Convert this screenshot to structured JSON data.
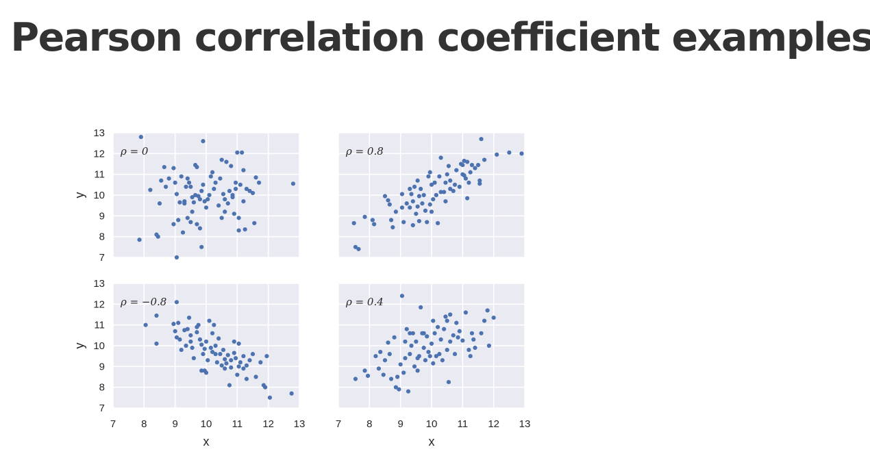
{
  "title": "Pearson correlation coefficient examples",
  "chart_data": [
    {
      "type": "scatter",
      "annotation": "ρ = 0",
      "xlabel": "",
      "ylabel": "y",
      "xlim": [
        7,
        13
      ],
      "ylim": [
        7,
        13
      ],
      "xticks": [],
      "yticks": [
        "7",
        "8",
        "9",
        "10",
        "11",
        "12",
        "13"
      ],
      "color": "#4c72b0",
      "grid": true,
      "points": [
        [
          7.9,
          12.8
        ],
        [
          9.9,
          12.6
        ],
        [
          12.8,
          10.55
        ],
        [
          7.85,
          7.85
        ],
        [
          8.4,
          8.1
        ],
        [
          8.45,
          8.0
        ],
        [
          9.05,
          7.0
        ],
        [
          9.85,
          7.5
        ],
        [
          8.2,
          10.25
        ],
        [
          8.5,
          9.6
        ],
        [
          8.55,
          10.7
        ],
        [
          8.65,
          11.35
        ],
        [
          8.8,
          10.8
        ],
        [
          8.95,
          11.3
        ],
        [
          9.0,
          10.6
        ],
        [
          9.05,
          10.05
        ],
        [
          8.95,
          8.6
        ],
        [
          9.1,
          8.8
        ],
        [
          9.15,
          9.65
        ],
        [
          9.3,
          9.7
        ],
        [
          9.35,
          10.4
        ],
        [
          9.4,
          10.8
        ],
        [
          9.45,
          10.6
        ],
        [
          9.5,
          10.4
        ],
        [
          9.55,
          9.9
        ],
        [
          9.6,
          9.65
        ],
        [
          9.65,
          11.45
        ],
        [
          9.7,
          11.35
        ],
        [
          9.75,
          9.95
        ],
        [
          9.8,
          9.8
        ],
        [
          9.85,
          10.2
        ],
        [
          9.9,
          10.5
        ],
        [
          9.95,
          9.7
        ],
        [
          10.0,
          9.4
        ],
        [
          10.1,
          10.0
        ],
        [
          10.15,
          10.9
        ],
        [
          10.2,
          11.1
        ],
        [
          10.3,
          10.6
        ],
        [
          10.4,
          9.5
        ],
        [
          10.45,
          10.8
        ],
        [
          10.5,
          11.7
        ],
        [
          10.55,
          10.05
        ],
        [
          10.6,
          9.8
        ],
        [
          10.65,
          11.6
        ],
        [
          10.7,
          9.6
        ],
        [
          10.75,
          10.2
        ],
        [
          10.8,
          11.4
        ],
        [
          10.85,
          9.9
        ],
        [
          10.95,
          10.3
        ],
        [
          11.0,
          12.05
        ],
        [
          11.05,
          8.9
        ],
        [
          11.1,
          10.5
        ],
        [
          11.15,
          12.05
        ],
        [
          11.2,
          11.2
        ],
        [
          11.3,
          10.3
        ],
        [
          11.4,
          10.2
        ],
        [
          11.5,
          10.1
        ],
        [
          11.55,
          8.65
        ],
        [
          11.6,
          10.85
        ],
        [
          11.7,
          10.6
        ],
        [
          10.9,
          9.1
        ],
        [
          11.05,
          8.3
        ],
        [
          11.25,
          8.35
        ],
        [
          9.25,
          8.2
        ],
        [
          9.4,
          8.9
        ],
        [
          9.5,
          8.7
        ],
        [
          9.55,
          9.2
        ],
        [
          9.7,
          8.6
        ],
        [
          9.8,
          8.4
        ],
        [
          10.6,
          9.2
        ],
        [
          10.5,
          8.9
        ],
        [
          10.85,
          10.0
        ],
        [
          11.2,
          9.7
        ],
        [
          9.2,
          10.9
        ],
        [
          9.65,
          10.0
        ],
        [
          9.3,
          9.6
        ],
        [
          10.05,
          9.8
        ],
        [
          8.7,
          10.4
        ],
        [
          10.25,
          10.3
        ],
        [
          10.95,
          10.6
        ]
      ]
    },
    {
      "type": "scatter",
      "annotation": "ρ = 0.8",
      "xlabel": "",
      "ylabel": "",
      "xlim": [
        7,
        13
      ],
      "ylim": [
        7,
        13
      ],
      "xticks": [],
      "yticks": [],
      "color": "#4c72b0",
      "grid": true,
      "points": [
        [
          7.5,
          8.65
        ],
        [
          7.55,
          7.5
        ],
        [
          7.65,
          7.4
        ],
        [
          7.85,
          8.95
        ],
        [
          8.1,
          8.8
        ],
        [
          8.15,
          8.6
        ],
        [
          8.5,
          9.95
        ],
        [
          8.6,
          9.75
        ],
        [
          8.65,
          9.55
        ],
        [
          8.7,
          8.8
        ],
        [
          8.75,
          8.45
        ],
        [
          8.85,
          9.2
        ],
        [
          9.05,
          9.4
        ],
        [
          9.1,
          8.7
        ],
        [
          9.2,
          9.6
        ],
        [
          9.3,
          9.4
        ],
        [
          9.35,
          10.05
        ],
        [
          9.4,
          9.7
        ],
        [
          9.45,
          10.4
        ],
        [
          9.5,
          9.1
        ],
        [
          9.55,
          9.45
        ],
        [
          9.6,
          9.95
        ],
        [
          9.65,
          10.3
        ],
        [
          9.7,
          9.6
        ],
        [
          9.75,
          10.0
        ],
        [
          9.8,
          9.25
        ],
        [
          9.9,
          10.9
        ],
        [
          9.95,
          11.1
        ],
        [
          10.0,
          10.5
        ],
        [
          10.05,
          9.8
        ],
        [
          10.1,
          10.6
        ],
        [
          10.2,
          8.65
        ],
        [
          10.25,
          10.9
        ],
        [
          10.3,
          11.8
        ],
        [
          10.4,
          10.15
        ],
        [
          10.45,
          9.7
        ],
        [
          10.5,
          11.0
        ],
        [
          10.55,
          11.4
        ],
        [
          10.6,
          10.7
        ],
        [
          10.7,
          10.2
        ],
        [
          10.75,
          10.5
        ],
        [
          10.8,
          11.2
        ],
        [
          10.9,
          10.4
        ],
        [
          10.95,
          11.5
        ],
        [
          11.0,
          11.0
        ],
        [
          11.05,
          11.65
        ],
        [
          11.1,
          10.8
        ],
        [
          11.15,
          11.6
        ],
        [
          11.2,
          10.6
        ],
        [
          11.25,
          11.1
        ],
        [
          11.3,
          11.45
        ],
        [
          11.4,
          11.3
        ],
        [
          11.5,
          11.45
        ],
        [
          11.55,
          10.7
        ],
        [
          11.6,
          12.7
        ],
        [
          11.7,
          11.7
        ],
        [
          12.1,
          11.95
        ],
        [
          12.5,
          12.05
        ],
        [
          12.9,
          12.0
        ],
        [
          11.15,
          9.85
        ],
        [
          10.0,
          9.2
        ],
        [
          9.4,
          8.55
        ],
        [
          9.6,
          8.75
        ],
        [
          9.85,
          8.7
        ],
        [
          10.3,
          10.15
        ],
        [
          9.95,
          9.55
        ],
        [
          10.45,
          10.6
        ],
        [
          11.0,
          11.45
        ],
        [
          9.05,
          10.05
        ],
        [
          9.3,
          10.3
        ],
        [
          9.55,
          10.7
        ],
        [
          10.15,
          10.0
        ],
        [
          10.6,
          10.3
        ],
        [
          11.05,
          10.95
        ],
        [
          11.55,
          10.55
        ]
      ]
    },
    {
      "type": "scatter",
      "annotation": "ρ = −0.8",
      "xlabel": "x",
      "ylabel": "y",
      "xlim": [
        7,
        13
      ],
      "ylim": [
        7,
        13
      ],
      "xticks": [
        "7",
        "8",
        "9",
        "10",
        "11",
        "12",
        "13"
      ],
      "yticks": [
        "7",
        "8",
        "9",
        "10",
        "11",
        "12",
        "13"
      ],
      "color": "#4c72b0",
      "grid": true,
      "points": [
        [
          8.05,
          11.0
        ],
        [
          8.4,
          11.45
        ],
        [
          8.4,
          10.1
        ],
        [
          9.05,
          12.1
        ],
        [
          8.95,
          11.05
        ],
        [
          9.0,
          10.7
        ],
        [
          9.05,
          10.4
        ],
        [
          9.1,
          11.1
        ],
        [
          9.15,
          10.3
        ],
        [
          9.2,
          9.8
        ],
        [
          9.3,
          10.75
        ],
        [
          9.4,
          10.8
        ],
        [
          9.45,
          11.35
        ],
        [
          9.5,
          10.5
        ],
        [
          9.55,
          9.9
        ],
        [
          9.6,
          9.4
        ],
        [
          9.7,
          10.65
        ],
        [
          9.75,
          11.0
        ],
        [
          9.8,
          10.3
        ],
        [
          9.85,
          10.05
        ],
        [
          9.9,
          9.6
        ],
        [
          9.95,
          8.8
        ],
        [
          10.0,
          10.2
        ],
        [
          10.05,
          9.3
        ],
        [
          10.1,
          11.2
        ],
        [
          10.15,
          9.9
        ],
        [
          10.2,
          10.6
        ],
        [
          10.25,
          11.0
        ],
        [
          10.3,
          9.6
        ],
        [
          10.35,
          9.2
        ],
        [
          10.4,
          10.35
        ],
        [
          10.5,
          9.05
        ],
        [
          10.55,
          9.8
        ],
        [
          10.6,
          8.9
        ],
        [
          10.7,
          9.55
        ],
        [
          10.75,
          8.1
        ],
        [
          10.8,
          9.3
        ],
        [
          10.9,
          10.2
        ],
        [
          10.95,
          9.4
        ],
        [
          11.0,
          8.6
        ],
        [
          11.05,
          10.1
        ],
        [
          11.1,
          9.2
        ],
        [
          11.2,
          9.5
        ],
        [
          11.3,
          8.4
        ],
        [
          11.4,
          9.3
        ],
        [
          11.5,
          9.6
        ],
        [
          11.6,
          8.5
        ],
        [
          11.75,
          9.2
        ],
        [
          11.85,
          8.1
        ],
        [
          11.95,
          9.5
        ],
        [
          12.05,
          7.5
        ],
        [
          12.75,
          7.7
        ],
        [
          11.9,
          8.0
        ],
        [
          10.0,
          8.7
        ],
        [
          9.85,
          8.8
        ],
        [
          10.2,
          9.7
        ],
        [
          10.6,
          9.35
        ],
        [
          10.9,
          9.65
        ],
        [
          11.2,
          8.9
        ],
        [
          9.5,
          10.2
        ],
        [
          9.7,
          10.9
        ],
        [
          10.45,
          9.6
        ],
        [
          10.8,
          8.95
        ],
        [
          11.3,
          9.05
        ],
        [
          9.95,
          9.85
        ],
        [
          10.3,
          10.0
        ],
        [
          9.35,
          10.0
        ],
        [
          10.65,
          9.15
        ],
        [
          11.05,
          9.0
        ]
      ]
    },
    {
      "type": "scatter",
      "annotation": "ρ = 0.4",
      "xlabel": "x",
      "ylabel": "",
      "xlim": [
        7,
        13
      ],
      "ylim": [
        7,
        13
      ],
      "xticks": [
        "7",
        "8",
        "9",
        "10",
        "11",
        "12",
        "13"
      ],
      "yticks": [],
      "color": "#4c72b0",
      "grid": true,
      "points": [
        [
          7.55,
          8.4
        ],
        [
          7.85,
          8.8
        ],
        [
          7.95,
          8.55
        ],
        [
          8.2,
          9.5
        ],
        [
          8.3,
          8.9
        ],
        [
          8.35,
          9.7
        ],
        [
          8.45,
          8.6
        ],
        [
          8.5,
          9.3
        ],
        [
          8.6,
          10.15
        ],
        [
          8.7,
          8.4
        ],
        [
          8.8,
          10.4
        ],
        [
          8.85,
          8.0
        ],
        [
          8.9,
          8.5
        ],
        [
          8.95,
          7.9
        ],
        [
          9.0,
          9.1
        ],
        [
          9.05,
          12.4
        ],
        [
          9.1,
          8.7
        ],
        [
          9.15,
          9.4
        ],
        [
          9.2,
          10.8
        ],
        [
          9.25,
          7.8
        ],
        [
          9.3,
          9.6
        ],
        [
          9.35,
          10.0
        ],
        [
          9.4,
          10.6
        ],
        [
          9.45,
          9.0
        ],
        [
          9.5,
          10.2
        ],
        [
          9.55,
          8.8
        ],
        [
          9.6,
          9.5
        ],
        [
          9.65,
          11.85
        ],
        [
          9.7,
          10.6
        ],
        [
          9.75,
          9.9
        ],
        [
          9.8,
          9.3
        ],
        [
          9.85,
          10.45
        ],
        [
          9.9,
          9.7
        ],
        [
          10.0,
          10.1
        ],
        [
          10.05,
          11.2
        ],
        [
          10.1,
          10.6
        ],
        [
          10.15,
          9.5
        ],
        [
          10.2,
          10.9
        ],
        [
          10.3,
          10.3
        ],
        [
          10.4,
          10.8
        ],
        [
          10.45,
          11.4
        ],
        [
          10.5,
          9.8
        ],
        [
          10.55,
          8.25
        ],
        [
          10.6,
          11.5
        ],
        [
          10.7,
          10.5
        ],
        [
          10.75,
          9.6
        ],
        [
          10.8,
          11.1
        ],
        [
          10.9,
          10.7
        ],
        [
          11.0,
          10.25
        ],
        [
          11.1,
          11.6
        ],
        [
          11.2,
          9.8
        ],
        [
          11.25,
          9.5
        ],
        [
          11.3,
          10.6
        ],
        [
          11.4,
          9.9
        ],
        [
          11.6,
          10.6
        ],
        [
          11.8,
          11.7
        ],
        [
          11.85,
          10.0
        ],
        [
          12.0,
          11.35
        ],
        [
          10.5,
          11.2
        ],
        [
          9.95,
          9.5
        ],
        [
          10.6,
          10.2
        ],
        [
          9.3,
          10.6
        ],
        [
          10.05,
          9.15
        ],
        [
          11.35,
          10.3
        ],
        [
          11.7,
          11.2
        ],
        [
          10.35,
          9.3
        ],
        [
          9.15,
          10.2
        ],
        [
          8.65,
          9.6
        ],
        [
          10.85,
          10.4
        ],
        [
          9.75,
          10.6
        ],
        [
          10.25,
          9.6
        ],
        [
          9.55,
          9.4
        ]
      ]
    }
  ]
}
